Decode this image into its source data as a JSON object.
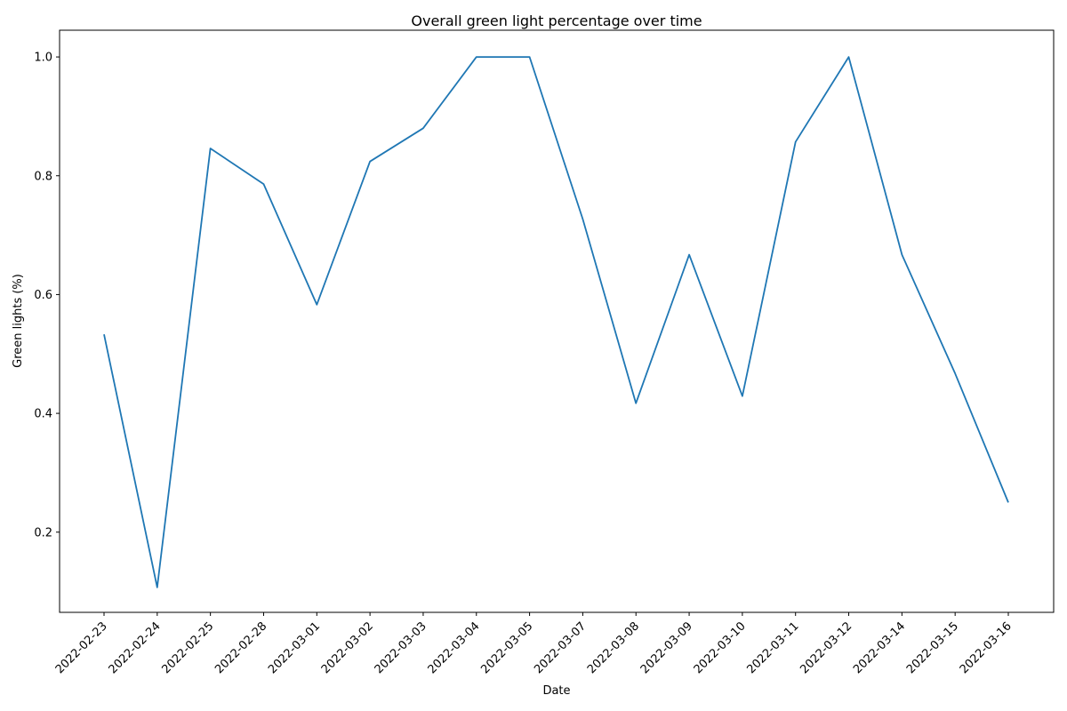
{
  "chart_data": {
    "type": "line",
    "title": "Overall green light percentage over time",
    "xlabel": "Date",
    "ylabel": "Green lights (%)",
    "ylim": [
      0.065,
      1.045
    ],
    "yticks": [
      "0.2",
      "0.4",
      "0.6",
      "0.8",
      "1.0"
    ],
    "ytick_values": [
      0.2,
      0.4,
      0.6,
      0.8,
      1.0
    ],
    "grid": false,
    "line_color": "#1f77b4",
    "categories": [
      "2022-02-23",
      "2022-02-24",
      "2022-02-25",
      "2022-02-28",
      "2022-03-01",
      "2022-03-02",
      "2022-03-03",
      "2022-03-04",
      "2022-03-05",
      "2022-03-07",
      "2022-03-08",
      "2022-03-09",
      "2022-03-10",
      "2022-03-11",
      "2022-03-12",
      "2022-03-14",
      "2022-03-15",
      "2022-03-16"
    ],
    "values": [
      0.533,
      0.107,
      0.846,
      0.786,
      0.583,
      0.824,
      0.88,
      1.0,
      1.0,
      0.727,
      0.417,
      0.667,
      0.429,
      0.857,
      1.0,
      0.667,
      0.467,
      0.25
    ]
  }
}
